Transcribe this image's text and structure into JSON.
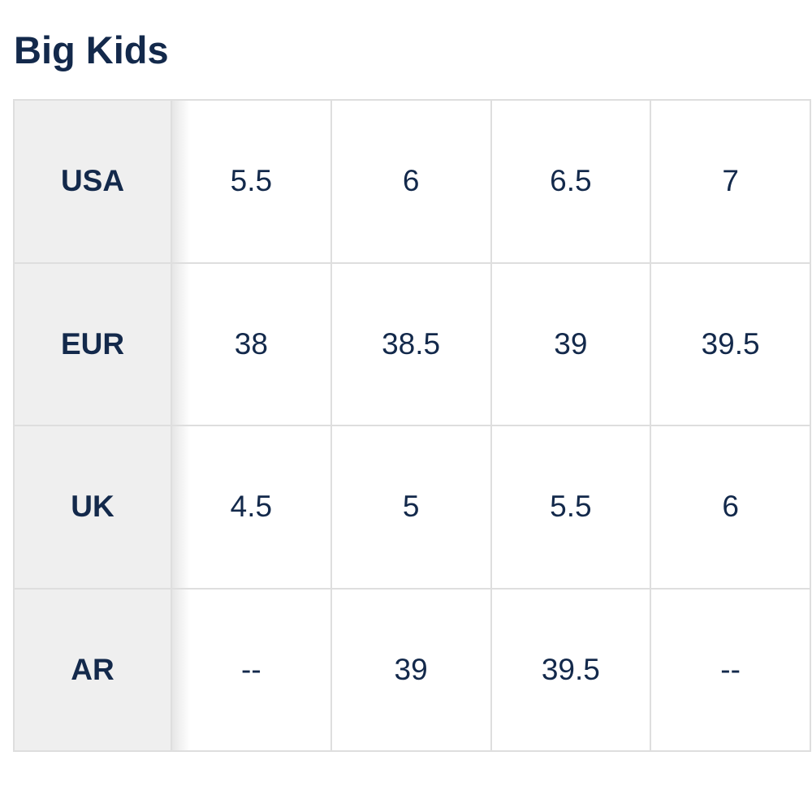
{
  "header": {
    "title": "Big Kids"
  },
  "table": {
    "rows": [
      [
        "USA",
        "5.5",
        "6",
        "6.5",
        "7"
      ],
      [
        "EUR",
        "38",
        "38.5",
        "39",
        "39.5"
      ],
      [
        "UK",
        "4.5",
        "5",
        "5.5",
        "6"
      ],
      [
        "AR",
        "--",
        "39",
        "39.5",
        "--"
      ]
    ]
  }
}
